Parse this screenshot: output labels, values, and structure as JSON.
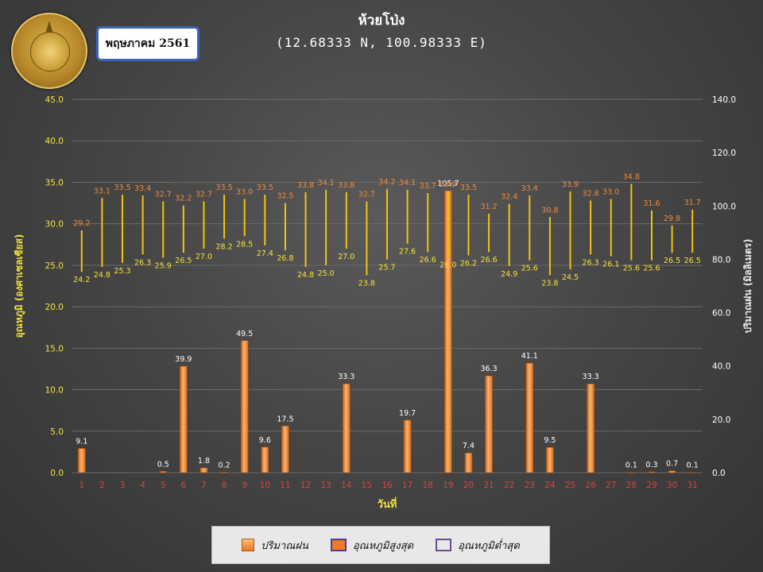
{
  "header": {
    "month_label": "พฤษภาคม 2561",
    "title": "ห้วยโป่ง",
    "subtitle": "(12.68333 N, 100.98333 E)",
    "logo": "thai-meteorological-department-seal"
  },
  "chart_data": {
    "type": "bar+floating-range",
    "categories": [
      "1",
      "2",
      "3",
      "4",
      "5",
      "6",
      "7",
      "8",
      "9",
      "10",
      "11",
      "12",
      "13",
      "14",
      "15",
      "16",
      "17",
      "18",
      "19",
      "20",
      "21",
      "22",
      "23",
      "24",
      "25",
      "26",
      "27",
      "28",
      "29",
      "30",
      "31"
    ],
    "series": [
      {
        "name": "ปริมาณฝน",
        "axis": "right",
        "values": [
          9.1,
          null,
          null,
          null,
          0.5,
          39.9,
          1.8,
          0.2,
          49.5,
          9.6,
          17.5,
          null,
          null,
          33.3,
          null,
          null,
          19.7,
          null,
          105.7,
          7.4,
          36.3,
          null,
          41.1,
          9.5,
          null,
          33.3,
          null,
          0.1,
          0.3,
          0.7,
          0.1
        ]
      },
      {
        "name": "อุณหภูมิสูงสุด",
        "axis": "left",
        "values": [
          29.2,
          33.1,
          33.5,
          33.4,
          32.7,
          32.2,
          32.7,
          33.5,
          33.0,
          33.5,
          32.5,
          33.8,
          34.1,
          33.8,
          32.7,
          34.2,
          34.1,
          33.7,
          33.9,
          33.5,
          31.2,
          32.4,
          33.4,
          30.8,
          33.9,
          32.8,
          33.0,
          34.8,
          31.6,
          29.8,
          31.7
        ]
      },
      {
        "name": "อุณหภูมิต่ำสุด",
        "axis": "left",
        "values": [
          24.2,
          24.8,
          25.3,
          26.3,
          25.9,
          26.5,
          27.0,
          28.2,
          28.5,
          27.4,
          26.8,
          24.8,
          25.0,
          27.0,
          23.8,
          25.7,
          27.6,
          26.6,
          26.0,
          26.2,
          26.6,
          24.9,
          25.6,
          23.8,
          24.5,
          26.3,
          26.1,
          25.6,
          25.6,
          26.5,
          26.5
        ]
      }
    ],
    "xlabel": "วันที่",
    "ylabel_left": "อุณหภูมิ (องศาเซลเซียส)",
    "ylabel_right": "ปริมาณฝน (มิลลิเมตร)",
    "ylim_left": [
      0,
      45
    ],
    "ylim_right": [
      0,
      140
    ],
    "yticks_left": [
      "0.0",
      "5.0",
      "10.0",
      "15.0",
      "20.0",
      "25.0",
      "30.0",
      "35.0",
      "40.0",
      "45.0"
    ],
    "yticks_right": [
      "0.0",
      "20.0",
      "40.0",
      "60.0",
      "80.0",
      "100.0",
      "120.0",
      "140.0"
    ],
    "grid": true,
    "legend_position": "bottom",
    "colors": {
      "rain": "#f0892e",
      "max_label": "#f08a3c",
      "min_label": "#f5e23a",
      "range_line": "#f2c40e",
      "axis_label": "#f5e23a",
      "day_label": "#d4453a",
      "grid": "#6a6a6a"
    }
  },
  "legend": {
    "rain": "ปริมาณฝน",
    "tmax": "อุณหภูมิสูงสุด",
    "tmin": "อุณหภูมิต่ำสุด"
  }
}
